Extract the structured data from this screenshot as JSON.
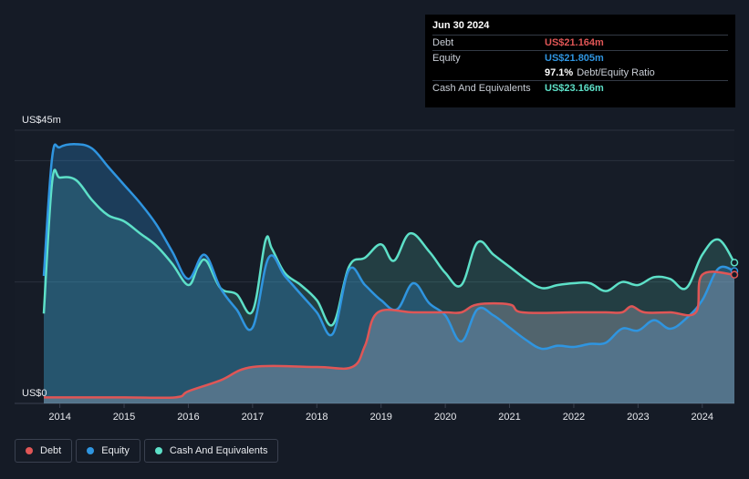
{
  "tooltip": {
    "date": "Jun 30 2024",
    "rows": [
      {
        "label": "Debt",
        "value": "US$21.164m",
        "color": "#e05656"
      },
      {
        "label": "Equity",
        "value": "US$21.805m",
        "color": "#2f95e0"
      },
      {
        "label": "",
        "value": "97.1%",
        "extra": "Debt/Equity Ratio",
        "color": "#ffffff"
      },
      {
        "label": "Cash And Equivalents",
        "value": "US$23.166m",
        "color": "#5de0c8"
      }
    ]
  },
  "legend": [
    {
      "label": "Debt",
      "color": "#e05656"
    },
    {
      "label": "Equity",
      "color": "#2f95e0"
    },
    {
      "label": "Cash And Equivalents",
      "color": "#5de0c8"
    }
  ],
  "chart_data": {
    "type": "area",
    "y_max_label": "US$45m",
    "y_min_label": "US$0",
    "ylim": [
      0,
      45
    ],
    "xlim": [
      2013.75,
      2024.5
    ],
    "x_ticks": [
      "2014",
      "2015",
      "2016",
      "2017",
      "2018",
      "2019",
      "2020",
      "2021",
      "2022",
      "2023",
      "2024"
    ],
    "series": [
      {
        "name": "Cash And Equivalents",
        "color": "#5de0c8",
        "points": [
          [
            2013.75,
            14.8
          ],
          [
            2013.88,
            36.5
          ],
          [
            2014.0,
            37.2
          ],
          [
            2014.25,
            36.8
          ],
          [
            2014.5,
            33.5
          ],
          [
            2014.75,
            31.0
          ],
          [
            2015.0,
            30.0
          ],
          [
            2015.25,
            28.0
          ],
          [
            2015.5,
            26.0
          ],
          [
            2015.75,
            23.0
          ],
          [
            2016.0,
            19.5
          ],
          [
            2016.15,
            22.5
          ],
          [
            2016.28,
            23.5
          ],
          [
            2016.5,
            19.0
          ],
          [
            2016.75,
            18.0
          ],
          [
            2017.0,
            15.2
          ],
          [
            2017.2,
            26.8
          ],
          [
            2017.3,
            25.5
          ],
          [
            2017.5,
            21.5
          ],
          [
            2017.75,
            19.5
          ],
          [
            2018.0,
            17.0
          ],
          [
            2018.25,
            13.0
          ],
          [
            2018.5,
            22.5
          ],
          [
            2018.75,
            24.0
          ],
          [
            2019.0,
            26.2
          ],
          [
            2019.2,
            23.5
          ],
          [
            2019.45,
            28.0
          ],
          [
            2019.75,
            25.0
          ],
          [
            2020.0,
            21.5
          ],
          [
            2020.25,
            19.5
          ],
          [
            2020.5,
            26.5
          ],
          [
            2020.75,
            24.5
          ],
          [
            2021.0,
            22.5
          ],
          [
            2021.25,
            20.5
          ],
          [
            2021.5,
            19.0
          ],
          [
            2021.75,
            19.5
          ],
          [
            2022.0,
            19.8
          ],
          [
            2022.25,
            19.8
          ],
          [
            2022.5,
            18.5
          ],
          [
            2022.75,
            20.0
          ],
          [
            2023.0,
            19.5
          ],
          [
            2023.25,
            20.8
          ],
          [
            2023.5,
            20.5
          ],
          [
            2023.75,
            19.0
          ],
          [
            2024.0,
            24.5
          ],
          [
            2024.25,
            27.0
          ],
          [
            2024.5,
            23.2
          ]
        ]
      },
      {
        "name": "Equity",
        "color": "#2f95e0",
        "points": [
          [
            2013.75,
            21.0
          ],
          [
            2013.88,
            40.5
          ],
          [
            2014.0,
            42.2
          ],
          [
            2014.25,
            42.7
          ],
          [
            2014.5,
            42.0
          ],
          [
            2014.75,
            39.0
          ],
          [
            2015.0,
            36.0
          ],
          [
            2015.25,
            33.0
          ],
          [
            2015.5,
            29.5
          ],
          [
            2015.75,
            25.0
          ],
          [
            2016.0,
            20.5
          ],
          [
            2016.25,
            24.5
          ],
          [
            2016.5,
            19.0
          ],
          [
            2016.75,
            15.5
          ],
          [
            2017.0,
            12.5
          ],
          [
            2017.25,
            24.0
          ],
          [
            2017.5,
            21.0
          ],
          [
            2017.75,
            18.0
          ],
          [
            2018.0,
            15.0
          ],
          [
            2018.25,
            11.5
          ],
          [
            2018.5,
            22.0
          ],
          [
            2018.75,
            19.5
          ],
          [
            2019.0,
            17.0
          ],
          [
            2019.25,
            15.5
          ],
          [
            2019.5,
            19.8
          ],
          [
            2019.75,
            16.5
          ],
          [
            2020.0,
            14.5
          ],
          [
            2020.25,
            10.2
          ],
          [
            2020.5,
            15.5
          ],
          [
            2020.75,
            14.5
          ],
          [
            2021.0,
            12.5
          ],
          [
            2021.25,
            10.5
          ],
          [
            2021.5,
            9.0
          ],
          [
            2021.75,
            9.5
          ],
          [
            2022.0,
            9.3
          ],
          [
            2022.25,
            9.8
          ],
          [
            2022.5,
            10.0
          ],
          [
            2022.75,
            12.3
          ],
          [
            2023.0,
            12.0
          ],
          [
            2023.25,
            13.7
          ],
          [
            2023.5,
            12.3
          ],
          [
            2023.75,
            14.0
          ],
          [
            2024.0,
            17.0
          ],
          [
            2024.25,
            22.2
          ],
          [
            2024.5,
            21.8
          ]
        ]
      },
      {
        "name": "Debt",
        "color": "#e05656",
        "points": [
          [
            2013.75,
            1.0
          ],
          [
            2014.0,
            1.0
          ],
          [
            2015.0,
            1.0
          ],
          [
            2015.8,
            1.0
          ],
          [
            2016.0,
            2.0
          ],
          [
            2016.5,
            3.8
          ],
          [
            2017.0,
            6.0
          ],
          [
            2018.0,
            6.0
          ],
          [
            2018.55,
            6.0
          ],
          [
            2018.75,
            9.5
          ],
          [
            2018.95,
            15.0
          ],
          [
            2019.5,
            15.0
          ],
          [
            2020.0,
            15.0
          ],
          [
            2020.25,
            15.0
          ],
          [
            2020.5,
            16.3
          ],
          [
            2021.0,
            16.3
          ],
          [
            2021.2,
            15.0
          ],
          [
            2022.0,
            15.0
          ],
          [
            2022.5,
            15.0
          ],
          [
            2022.75,
            15.0
          ],
          [
            2022.9,
            16.0
          ],
          [
            2023.1,
            15.0
          ],
          [
            2023.5,
            15.0
          ],
          [
            2023.9,
            15.0
          ],
          [
            2024.0,
            21.2
          ],
          [
            2024.5,
            21.2
          ]
        ]
      }
    ]
  }
}
